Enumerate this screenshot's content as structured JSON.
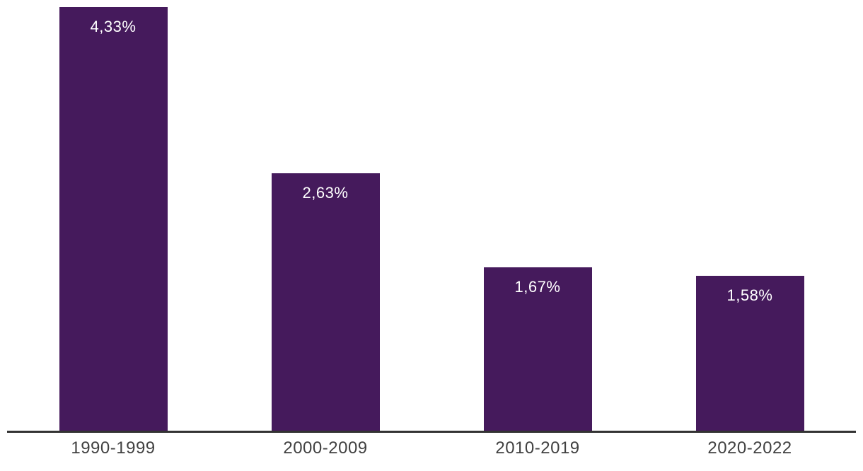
{
  "chart_data": {
    "type": "bar",
    "categories": [
      "1990-1999",
      "2000-2009",
      "2010-2019",
      "2020-2022"
    ],
    "values": [
      4.33,
      2.63,
      1.67,
      1.58
    ],
    "value_labels": [
      "4,33%",
      "2,63%",
      "1,67%",
      "1,58%"
    ],
    "title": "",
    "xlabel": "",
    "ylabel": "",
    "ylim": [
      0,
      4.33
    ],
    "grid": false,
    "legend_position": "none",
    "bar_color": "#451a5c",
    "value_label_color": "#ffffff",
    "category_label_color": "#414141",
    "axis_line_color": "#333333",
    "background_color": "#ffffff"
  }
}
